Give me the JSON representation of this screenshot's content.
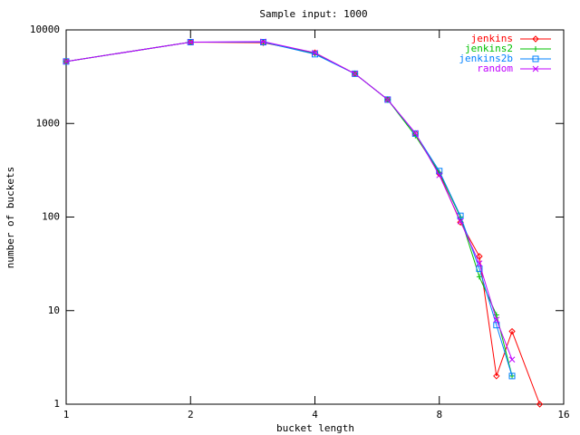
{
  "chart_data": {
    "type": "line",
    "title": "Sample input: 1000",
    "xlabel": "bucket length",
    "ylabel": "number of buckets",
    "xlog": true,
    "ylog": true,
    "xlim": [
      1,
      16
    ],
    "xticks": [
      1,
      2,
      4,
      8,
      16
    ],
    "ylim": [
      1,
      10000
    ],
    "yticks": [
      1,
      10,
      100,
      1000,
      10000
    ],
    "legend": "top-right",
    "series": [
      {
        "name": "jenkins",
        "color": "#ff0000",
        "marker": "diamond",
        "x": [
          1,
          2,
          3,
          4,
          5,
          6,
          7,
          8,
          9,
          10,
          11,
          12,
          14
        ],
        "values": [
          4600,
          7400,
          7300,
          5700,
          3400,
          1800,
          780,
          290,
          88,
          38,
          2,
          6,
          1
        ]
      },
      {
        "name": "jenkins2",
        "color": "#00c000",
        "marker": "plus",
        "x": [
          1,
          2,
          3,
          4,
          5,
          6,
          7,
          8,
          9,
          10,
          11,
          12
        ],
        "values": [
          4600,
          7400,
          7400,
          5600,
          3400,
          1800,
          740,
          300,
          100,
          23,
          9,
          2
        ]
      },
      {
        "name": "jenkins2b",
        "color": "#0080ff",
        "marker": "square",
        "x": [
          1,
          2,
          3,
          4,
          5,
          6,
          7,
          8,
          9,
          10,
          11,
          12
        ],
        "values": [
          4600,
          7400,
          7400,
          5500,
          3400,
          1800,
          780,
          310,
          103,
          28,
          7,
          2
        ]
      },
      {
        "name": "random",
        "color": "#c000ff",
        "marker": "cross",
        "x": [
          1,
          2,
          3,
          4,
          5,
          6,
          7,
          8,
          9,
          10,
          11,
          12
        ],
        "values": [
          4600,
          7400,
          7500,
          5700,
          3400,
          1800,
          790,
          280,
          90,
          32,
          8,
          3
        ]
      }
    ]
  }
}
